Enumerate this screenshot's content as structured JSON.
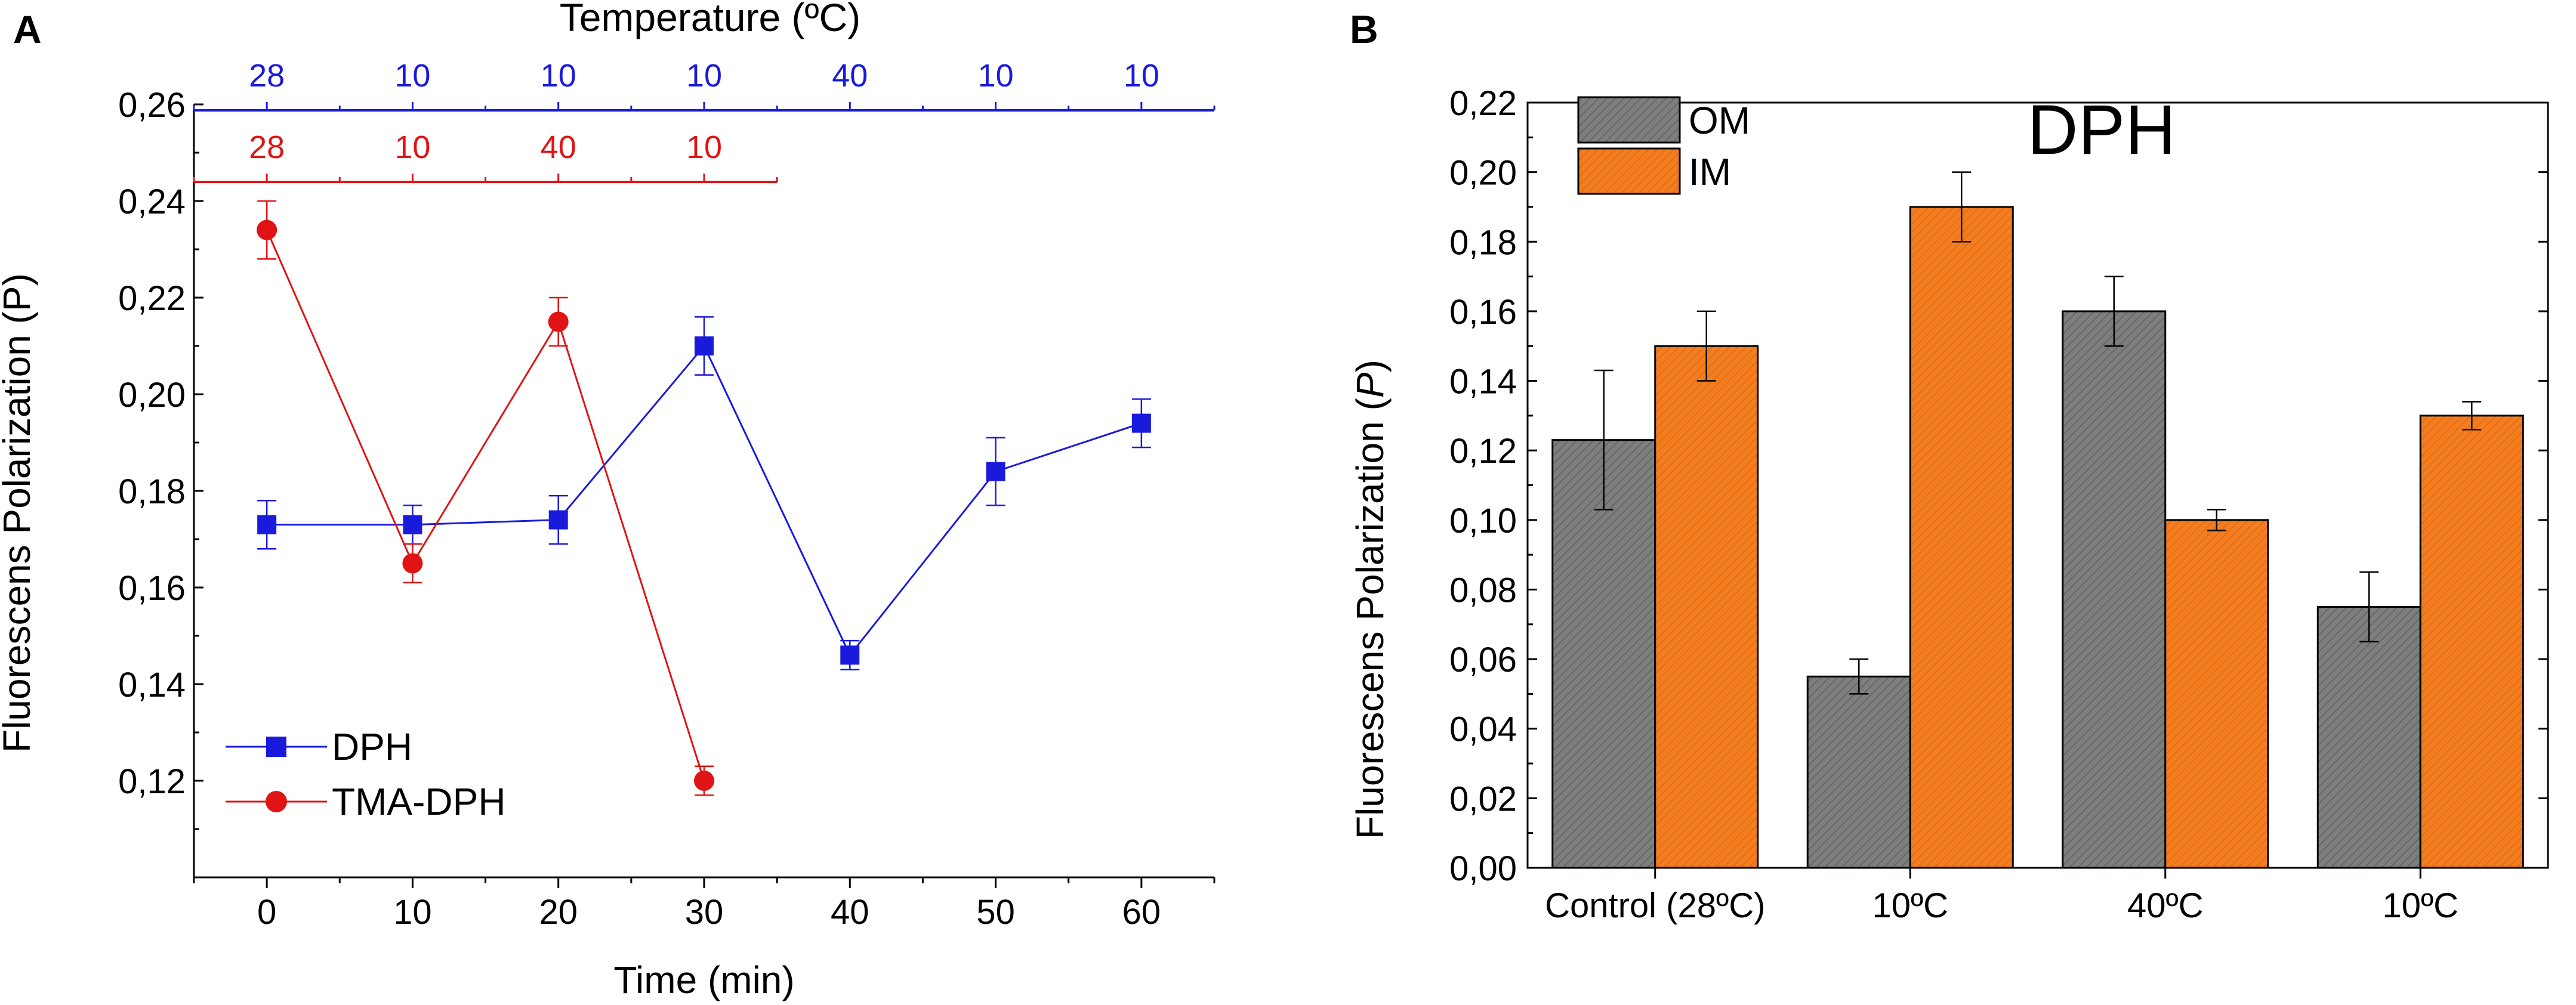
{
  "panels": {
    "a_label": "A",
    "b_label": "B"
  },
  "colors": {
    "dph": "#1a1adc",
    "tma": "#e01414",
    "om_fill": "#7d7f7c",
    "im_fill": "#f47d20",
    "axis": "#000000"
  },
  "chart_data": [
    {
      "type": "line",
      "panel": "A",
      "title": "",
      "xlabel": "Time (min)",
      "ylabel": "Fluorescens Polarization (P)",
      "xlim": [
        -5,
        65
      ],
      "ylim": [
        0.1,
        0.26
      ],
      "x_ticks": [
        0,
        10,
        20,
        30,
        40,
        50,
        60
      ],
      "x_tick_labels": [
        "0",
        "10",
        "20",
        "30",
        "40",
        "50",
        "60"
      ],
      "y_ticks": [
        0.12,
        0.14,
        0.16,
        0.18,
        0.2,
        0.22,
        0.24,
        0.26
      ],
      "y_tick_labels": [
        "0,12",
        "0,14",
        "0,16",
        "0,18",
        "0,20",
        "0,22",
        "0,24",
        "0,26"
      ],
      "top_axis_title": "Temperature (ºC)",
      "series": [
        {
          "name": "DPH",
          "marker": "square",
          "color": "#1a1adc",
          "x": [
            0,
            10,
            20,
            30,
            40,
            50,
            60
          ],
          "y": [
            0.173,
            0.173,
            0.174,
            0.21,
            0.146,
            0.184,
            0.194
          ],
          "err": [
            0.005,
            0.004,
            0.005,
            0.006,
            0.003,
            0.007,
            0.005
          ],
          "temperatures": [
            "28",
            "10",
            "10",
            "10",
            "40",
            "10",
            "10"
          ]
        },
        {
          "name": "TMA-DPH",
          "marker": "circle",
          "color": "#e01414",
          "x": [
            0,
            10,
            20,
            30
          ],
          "y": [
            0.234,
            0.165,
            0.215,
            0.12
          ],
          "err": [
            0.006,
            0.004,
            0.005,
            0.003
          ],
          "temperatures": [
            "28",
            "10",
            "40",
            "10"
          ]
        }
      ],
      "legend": "bottom-left"
    },
    {
      "type": "bar",
      "panel": "B",
      "title": "DPH",
      "xlabel": "",
      "ylabel": "Fluorescens Polarization (P)",
      "ylabel_main": "Fluorescens Polarization (",
      "ylabel_italic": "P",
      "ylabel_end": ")",
      "ylim": [
        0,
        0.22
      ],
      "y_ticks": [
        0,
        0.02,
        0.04,
        0.06,
        0.08,
        0.1,
        0.12,
        0.14,
        0.16,
        0.18,
        0.2,
        0.22
      ],
      "y_tick_labels": [
        "0,00",
        "0,02",
        "0,04",
        "0,06",
        "0,08",
        "0,10",
        "0,12",
        "0,14",
        "0,16",
        "0,18",
        "0,20",
        "0,22"
      ],
      "categories": [
        "Control (28ºC)",
        "10ºC",
        "40ºC",
        "10ºC"
      ],
      "series": [
        {
          "name": "OM",
          "color": "#7d7f7c",
          "values": [
            0.123,
            0.055,
            0.16,
            0.075
          ],
          "err": [
            0.02,
            0.005,
            0.01,
            0.01
          ]
        },
        {
          "name": "IM",
          "color": "#f47d20",
          "values": [
            0.15,
            0.19,
            0.1,
            0.13
          ],
          "err": [
            0.01,
            0.01,
            0.003,
            0.004
          ]
        }
      ],
      "legend": "top-left"
    }
  ]
}
